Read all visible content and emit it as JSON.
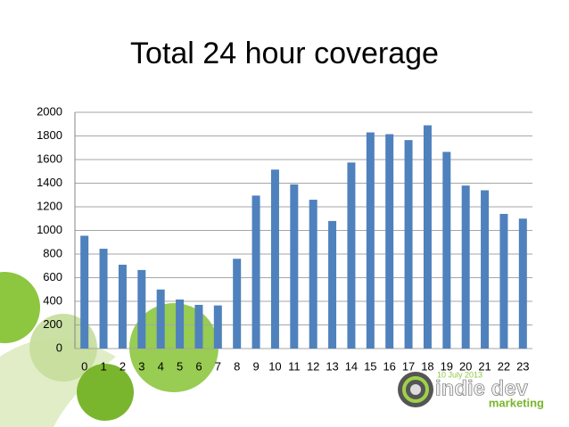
{
  "chart_data": {
    "type": "bar",
    "title": "Total 24 hour coverage",
    "categories": [
      "0",
      "1",
      "2",
      "3",
      "4",
      "5",
      "6",
      "7",
      "8",
      "9",
      "10",
      "11",
      "12",
      "13",
      "14",
      "15",
      "16",
      "17",
      "18",
      "19",
      "20",
      "21",
      "22",
      "23"
    ],
    "values": [
      955,
      845,
      710,
      665,
      500,
      415,
      370,
      365,
      760,
      1295,
      1515,
      1390,
      1260,
      1080,
      1575,
      1830,
      1815,
      1765,
      1890,
      1665,
      1380,
      1340,
      1140,
      1100
    ],
    "color": "#4f81bd",
    "ylim": [
      0,
      2000
    ],
    "yticks": [
      0,
      200,
      400,
      600,
      800,
      1000,
      1200,
      1400,
      1600,
      1800,
      2000
    ],
    "grid": true
  },
  "logo": {
    "date": "10 July 2013",
    "name": "indie dev",
    "tagline": "marketing"
  }
}
